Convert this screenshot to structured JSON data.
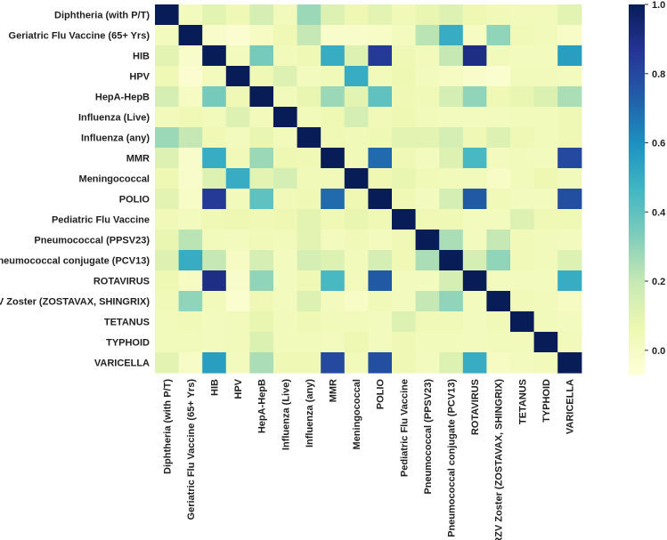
{
  "chart_data": {
    "type": "heatmap",
    "title": "",
    "xlabel": "",
    "ylabel": "",
    "categories": [
      "Diphtheria (with P/T)",
      "Geriatric Flu Vaccine (65+ Yrs)",
      "HIB",
      "HPV",
      "HepA-HepB",
      "Influenza (Live)",
      "Influenza (any)",
      "MMR",
      "Meningococcal",
      "POLIO",
      "Pediatric Flu Vaccine",
      "Pneumococcal (PPSV23)",
      "Pneumococcal conjugate (PCV13)",
      "ROTAVIRUS",
      "RZV Zoster (ZOSTAVAX, SHINGRIX)",
      "TETANUS",
      "TYPHOID",
      "VARICELLA"
    ],
    "row_labels_display": [
      "Diphtheria (with P/T)",
      "Geriatric Flu Vaccine (65+ Yrs)",
      "HIB",
      "HPV",
      "HepA-HepB",
      "Influenza (Live)",
      "Influenza (any)",
      "MMR",
      "Meningococcal",
      "POLIO",
      "Pediatric Flu Vaccine",
      "Pneumococcal (PPSV23)",
      "'neumococcal conjugate (PCV13)",
      "ROTAVIRUS",
      "'V Zoster (ZOSTAVAX, SHINGRIX)",
      "TETANUS",
      "TYPHOID",
      "VARICELLA"
    ],
    "values": [
      [
        1.0,
        0.02,
        0.1,
        0.05,
        0.15,
        0.03,
        0.28,
        0.12,
        0.06,
        0.1,
        0.04,
        0.08,
        0.12,
        0.06,
        0.04,
        0.03,
        0.03,
        0.1
      ],
      [
        0.02,
        1.0,
        -0.02,
        -0.04,
        0.0,
        0.05,
        0.2,
        -0.02,
        -0.02,
        -0.01,
        0.02,
        0.22,
        0.5,
        0.0,
        0.3,
        0.04,
        0.03,
        -0.01
      ],
      [
        0.1,
        -0.02,
        1.0,
        0.02,
        0.35,
        0.03,
        0.05,
        0.5,
        0.12,
        0.85,
        0.05,
        0.03,
        0.2,
        0.9,
        0.03,
        0.02,
        0.02,
        0.55
      ],
      [
        0.05,
        -0.04,
        0.02,
        1.0,
        0.05,
        0.12,
        0.02,
        0.04,
        0.5,
        0.03,
        0.06,
        0.02,
        0.0,
        -0.02,
        -0.03,
        0.03,
        0.03,
        0.02
      ],
      [
        0.15,
        0.0,
        0.35,
        0.05,
        1.0,
        0.03,
        0.08,
        0.28,
        0.1,
        0.4,
        0.05,
        0.04,
        0.15,
        0.3,
        0.05,
        0.08,
        0.13,
        0.25
      ],
      [
        0.03,
        0.05,
        0.03,
        0.12,
        0.03,
        1.0,
        0.03,
        0.06,
        0.15,
        0.04,
        0.06,
        0.03,
        0.02,
        0.02,
        0.02,
        0.03,
        0.03,
        0.05
      ],
      [
        0.28,
        0.2,
        0.05,
        0.02,
        0.08,
        0.03,
        1.0,
        0.05,
        0.04,
        0.05,
        0.1,
        0.1,
        0.15,
        0.05,
        0.12,
        0.05,
        0.03,
        0.05
      ],
      [
        0.12,
        -0.02,
        0.5,
        0.04,
        0.28,
        0.06,
        0.05,
        1.0,
        0.04,
        0.7,
        0.05,
        0.02,
        0.12,
        0.45,
        0.02,
        0.03,
        0.02,
        0.8
      ],
      [
        0.06,
        -0.02,
        0.12,
        0.5,
        0.1,
        0.15,
        0.04,
        0.04,
        1.0,
        0.06,
        0.08,
        0.04,
        0.03,
        0.03,
        -0.01,
        0.03,
        0.06,
        0.03
      ],
      [
        0.1,
        -0.01,
        0.85,
        0.03,
        0.4,
        0.04,
        0.05,
        0.7,
        0.06,
        1.0,
        0.05,
        0.02,
        0.15,
        0.75,
        0.04,
        0.02,
        0.02,
        0.78
      ],
      [
        0.04,
        0.02,
        0.05,
        0.06,
        0.05,
        0.06,
        0.1,
        0.05,
        0.08,
        0.05,
        1.0,
        0.05,
        0.05,
        0.02,
        0.02,
        0.12,
        0.05,
        0.05
      ],
      [
        0.08,
        0.22,
        0.03,
        0.02,
        0.04,
        0.03,
        0.1,
        0.02,
        0.04,
        0.02,
        0.05,
        1.0,
        0.25,
        0.02,
        0.2,
        0.04,
        0.03,
        0.02
      ],
      [
        0.12,
        0.5,
        0.2,
        0.0,
        0.15,
        0.02,
        0.15,
        0.12,
        0.03,
        0.15,
        0.05,
        0.25,
        1.0,
        0.15,
        0.3,
        0.04,
        0.03,
        0.12
      ],
      [
        0.06,
        0.0,
        0.9,
        -0.02,
        0.3,
        0.02,
        0.05,
        0.45,
        0.03,
        0.75,
        0.02,
        0.02,
        0.15,
        1.0,
        0.02,
        0.02,
        0.02,
        0.5
      ],
      [
        0.04,
        0.3,
        0.03,
        -0.03,
        0.05,
        0.02,
        0.12,
        0.02,
        -0.01,
        0.04,
        0.02,
        0.2,
        0.3,
        0.02,
        1.0,
        0.04,
        0.03,
        0.0
      ],
      [
        0.03,
        0.04,
        0.02,
        0.03,
        0.08,
        0.03,
        0.05,
        0.03,
        0.03,
        0.02,
        0.12,
        0.04,
        0.04,
        0.02,
        0.04,
        1.0,
        0.03,
        0.02
      ],
      [
        0.03,
        0.03,
        0.02,
        0.03,
        0.13,
        0.03,
        0.03,
        0.02,
        0.06,
        0.02,
        0.05,
        0.03,
        0.03,
        0.02,
        0.03,
        0.03,
        1.0,
        0.03
      ],
      [
        0.1,
        -0.01,
        0.55,
        0.02,
        0.25,
        0.05,
        0.05,
        0.8,
        0.03,
        0.78,
        0.05,
        0.02,
        0.12,
        0.5,
        0.0,
        0.02,
        0.03,
        1.0
      ]
    ],
    "colormap": "YlGnBu",
    "vmin": -0.07,
    "vmax": 1.0,
    "colorbar_ticks": [
      0.0,
      0.2,
      0.4,
      0.6,
      0.8,
      1.0
    ],
    "colorbar_tick_labels": [
      "0.0",
      "0.2",
      "0.4",
      "0.6",
      "0.8",
      "1.0"
    ],
    "grid": false,
    "legend": "colorbar-right"
  }
}
